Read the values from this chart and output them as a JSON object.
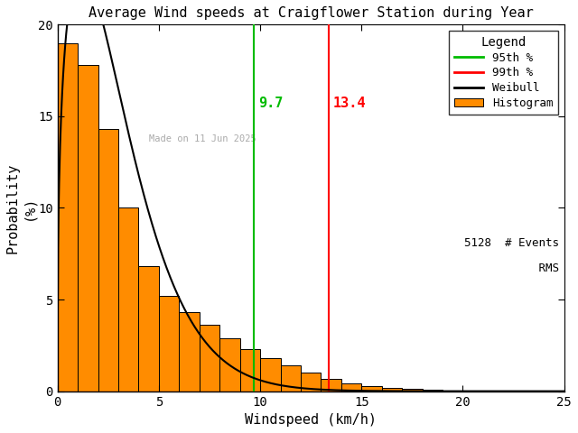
{
  "title": "Average Wind speeds at Craigflower Station during Year",
  "xlabel": "Windspeed (km/h)",
  "ylabel": "Probability\n(%)",
  "xlim": [
    0,
    25
  ],
  "ylim": [
    0,
    20
  ],
  "xticks": [
    0,
    5,
    10,
    15,
    20,
    25
  ],
  "yticks": [
    0,
    5,
    10,
    15,
    20
  ],
  "bar_color": "#FF8C00",
  "bar_edgecolor": "#000000",
  "bin_width": 1.0,
  "bar_heights": [
    19.0,
    17.8,
    14.3,
    10.0,
    6.8,
    5.2,
    4.3,
    3.6,
    2.9,
    2.3,
    1.8,
    1.4,
    1.0,
    0.65,
    0.42,
    0.28,
    0.18,
    0.12,
    0.08,
    0.05,
    0.03,
    0.02,
    0.01,
    0.01,
    0.0
  ],
  "bin_starts": [
    0,
    1,
    2,
    3,
    4,
    5,
    6,
    7,
    8,
    9,
    10,
    11,
    12,
    13,
    14,
    15,
    16,
    17,
    18,
    19,
    20,
    21,
    22,
    23,
    24
  ],
  "percentile_95": 9.7,
  "percentile_99": 13.4,
  "percentile_95_color": "#00BB00",
  "percentile_99_color": "#FF0000",
  "weibull_color": "#000000",
  "n_events": 5128,
  "watermark": "Made on 11 Jun 2025",
  "watermark_color": "#AAAAAA",
  "legend_title": "Legend",
  "background_color": "#FFFFFF",
  "weibull_k": 1.35,
  "weibull_lambda": 3.2
}
